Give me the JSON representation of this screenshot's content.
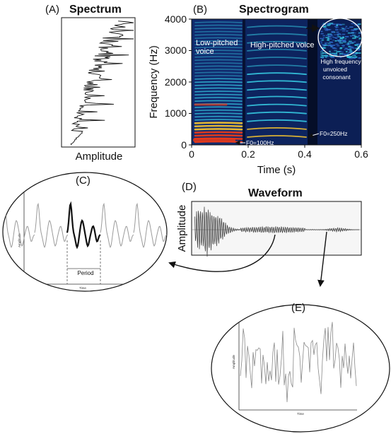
{
  "panels": {
    "a": {
      "letter": "(A)",
      "title": "Spectrum",
      "xlabel": "Amplitude"
    },
    "b": {
      "letter": "(B)",
      "title": "Spectrogram",
      "ylabel": "Frequency (Hz)",
      "xlabel": "Time (s)",
      "yticks": [
        "0",
        "1000",
        "2000",
        "3000",
        "4000"
      ],
      "xticks": [
        "0",
        "0.2",
        "0.4",
        "0.6"
      ],
      "ann_low_1": "Low-pitched",
      "ann_low_2": "voice",
      "ann_high": "High-pitched voice",
      "ann_hf_1": "High frequency",
      "ann_hf_2": "unvoiced",
      "ann_hf_3": "consonant",
      "ann_f0_100": "F0=100Hz",
      "ann_f0_250": "F0=250Hz"
    },
    "c": {
      "letter": "(C)",
      "ylabel": "Amplitude",
      "xlabel": "Time",
      "period": "Period"
    },
    "d": {
      "letter": "(D)",
      "title": "Waveform",
      "ylabel": "Amplitude"
    },
    "e": {
      "letter": "(E)",
      "ylabel": "Amplitude",
      "xlabel": "Time"
    }
  },
  "colors": {
    "spectrogram_bg": "#0a1a4a",
    "harmonic_hot": "#e83a1a",
    "harmonic_warm": "#f0c030",
    "harmonic_cool": "#35c8e0",
    "line": "#111111",
    "trace_gray": "#9a9a9a"
  }
}
